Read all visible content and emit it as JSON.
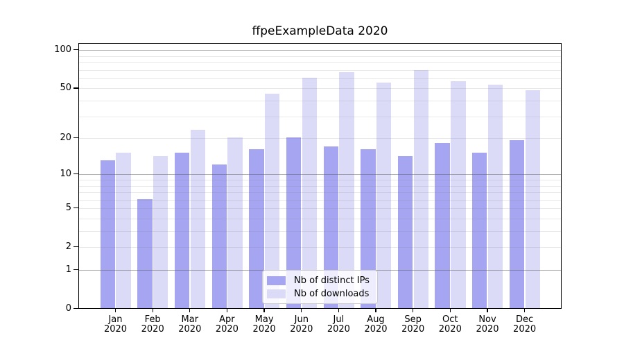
{
  "title": "ffpeExampleData 2020",
  "y_axis": {
    "scale": "log1p",
    "tick_values": [
      100,
      50,
      20,
      10,
      5,
      2,
      1,
      0
    ],
    "tick_labels": [
      "100",
      "50",
      "20",
      "10",
      "5",
      "2",
      "1",
      "0"
    ],
    "major_gridlines": [
      1,
      2,
      5,
      10,
      20,
      50,
      100
    ],
    "minor_gridlines": [
      3,
      4,
      6,
      7,
      8,
      9,
      30,
      40,
      60,
      70,
      80,
      90
    ],
    "decade_lines": [
      1,
      10,
      100
    ]
  },
  "x_axis": {
    "months": [
      "Jan",
      "Feb",
      "Mar",
      "Apr",
      "May",
      "Jun",
      "Jul",
      "Aug",
      "Sep",
      "Oct",
      "Nov",
      "Dec"
    ],
    "year_label": "2020"
  },
  "legend": {
    "items": [
      {
        "label": "Nb of distinct IPs",
        "color": "#a5a5f2"
      },
      {
        "label": "Nb of downloads",
        "color": "#dbdbf8"
      }
    ]
  },
  "colors": {
    "bar_distinct_ips": "#a5a5f2",
    "bar_downloads": "#dbdbf8",
    "decade_gridline": "rgba(96,96,96,0.5)",
    "minor_gridline": "rgba(128,128,128,0.18)",
    "axis": "#000000",
    "background": "#ffffff",
    "legend_border": "#cccccc"
  },
  "chart_data": {
    "type": "bar",
    "title": "ffpeExampleData 2020",
    "categories": [
      "Jan 2020",
      "Feb 2020",
      "Mar 2020",
      "Apr 2020",
      "May 2020",
      "Jun 2020",
      "Jul 2020",
      "Aug 2020",
      "Sep 2020",
      "Oct 2020",
      "Nov 2020",
      "Dec 2020"
    ],
    "series": [
      {
        "name": "Nb of distinct IPs",
        "values": [
          13,
          6,
          15,
          12,
          16,
          20,
          17,
          16,
          14,
          18,
          15,
          19
        ]
      },
      {
        "name": "Nb of downloads",
        "values": [
          15,
          14,
          23,
          20,
          45,
          60,
          66,
          55,
          69,
          56,
          53,
          48
        ]
      }
    ],
    "yscale": "log1p",
    "yticks": [
      0,
      1,
      2,
      5,
      10,
      20,
      50,
      100
    ],
    "ylim": [
      0,
      115
    ],
    "xlabel": "",
    "ylabel": "",
    "grid": "on",
    "grid_above_bars": true,
    "legend_position": "lower center"
  }
}
